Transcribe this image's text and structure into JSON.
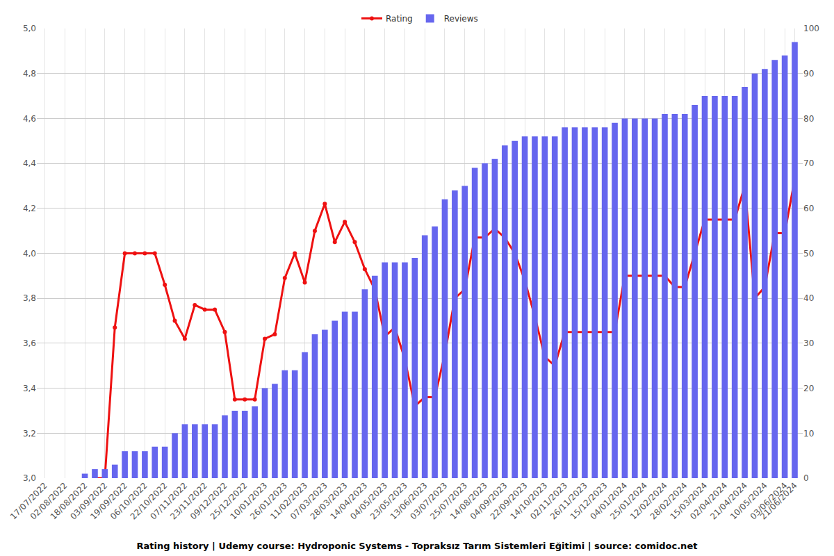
{
  "chart_data": {
    "type": "bar",
    "title": "Rating history | Udemy course: Hydroponic Systems - Topraksız Tarım Sistemleri Eğitimi | source: comidoc.net",
    "categories": [
      "17/07/2022",
      null,
      "02/08/2022",
      null,
      "18/08/2022",
      null,
      "03/09/2022",
      null,
      "19/09/2022",
      null,
      "06/10/2022",
      null,
      "22/10/2022",
      null,
      "07/11/2022",
      null,
      "23/11/2022",
      null,
      "09/12/2022",
      null,
      "25/12/2022",
      null,
      "10/01/2023",
      null,
      "26/01/2023",
      null,
      "11/02/2023",
      null,
      "07/03/2023",
      null,
      "28/03/2023",
      null,
      "14/04/2023",
      null,
      "04/05/2023",
      null,
      "23/05/2023",
      null,
      "13/06/2023",
      null,
      "03/07/2023",
      null,
      "25/07/2023",
      null,
      "14/08/2023",
      null,
      "04/09/2023",
      null,
      "22/09/2023",
      null,
      "14/10/2023",
      null,
      "02/11/2023",
      null,
      "26/11/2023",
      null,
      "15/12/2023",
      null,
      "04/01/2024",
      null,
      "25/01/2024",
      null,
      "12/02/2024",
      null,
      "28/02/2024",
      null,
      "15/03/2024",
      null,
      "02/04/2024",
      null,
      "21/04/2024",
      null,
      "10/05/2024",
      null,
      "03/06/2024",
      "21/06/2024"
    ],
    "series": [
      {
        "name": "Rating",
        "type": "line",
        "axis": "y",
        "color": "#ee1111",
        "marker": "circle",
        "values": [
          null,
          null,
          null,
          null,
          null,
          3.0,
          3.0,
          3.67,
          4.0,
          4.0,
          4.0,
          4.0,
          3.86,
          3.7,
          3.62,
          3.77,
          3.75,
          3.75,
          3.65,
          3.35,
          3.35,
          3.35,
          3.62,
          3.64,
          3.89,
          4.0,
          3.87,
          4.1,
          4.22,
          4.05,
          4.14,
          4.05,
          3.93,
          3.84,
          3.63,
          3.67,
          3.53,
          3.32,
          3.36,
          3.36,
          3.55,
          3.8,
          3.84,
          4.07,
          4.07,
          4.11,
          4.07,
          4.0,
          3.88,
          3.72,
          3.54,
          3.5,
          3.65,
          3.65,
          3.65,
          3.65,
          3.65,
          3.65,
          3.9,
          3.9,
          3.9,
          3.9,
          3.9,
          3.85,
          3.85,
          4.0,
          4.15,
          4.15,
          4.15,
          4.15,
          4.3,
          3.8,
          3.85,
          4.09,
          4.09,
          4.33
        ]
      },
      {
        "name": "Reviews",
        "type": "bar",
        "axis": "y2",
        "color": "#6666ee",
        "values": [
          null,
          null,
          null,
          null,
          1,
          2,
          2,
          3,
          6,
          6,
          6,
          7,
          7,
          10,
          12,
          12,
          12,
          12,
          14,
          15,
          15,
          16,
          20,
          21,
          24,
          24,
          28,
          32,
          33,
          35,
          37,
          37,
          42,
          45,
          48,
          48,
          48,
          49,
          54,
          56,
          62,
          64,
          65,
          69,
          70,
          71,
          74,
          75,
          76,
          76,
          76,
          76,
          78,
          78,
          78,
          78,
          78,
          79,
          80,
          80,
          80,
          80,
          81,
          81,
          81,
          83,
          85,
          85,
          85,
          85,
          87,
          90,
          91,
          93,
          94,
          97
        ]
      }
    ],
    "ylim": [
      3.0,
      5.0
    ],
    "yticks": [
      {
        "value": 3.0,
        "label": "3,0"
      },
      {
        "value": 3.2,
        "label": "3,2"
      },
      {
        "value": 3.4,
        "label": "3,4"
      },
      {
        "value": 3.6,
        "label": "3,6"
      },
      {
        "value": 3.8,
        "label": "3,8"
      },
      {
        "value": 4.0,
        "label": "4,0"
      },
      {
        "value": 4.2,
        "label": "4,2"
      },
      {
        "value": 4.4,
        "label": "4,4"
      },
      {
        "value": 4.6,
        "label": "4,6"
      },
      {
        "value": 4.8,
        "label": "4,8"
      },
      {
        "value": 5.0,
        "label": "5,0"
      }
    ],
    "y2lim": [
      0,
      100
    ],
    "y2ticks": [
      0,
      10,
      20,
      30,
      40,
      50,
      60,
      70,
      80,
      90,
      100
    ],
    "grid": true,
    "legend": "top"
  }
}
